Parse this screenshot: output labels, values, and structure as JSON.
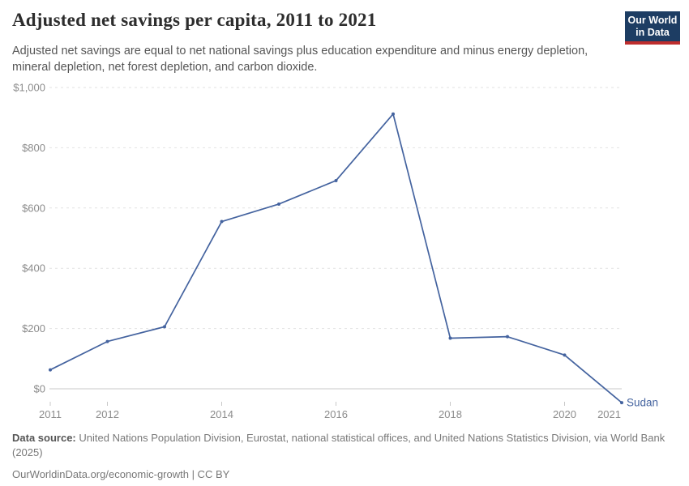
{
  "header": {
    "title": "Adjusted net savings per capita, 2011 to 2021",
    "subtitle": "Adjusted net savings are equal to net national savings plus education expenditure and minus energy depletion, mineral depletion, net forest depletion, and carbon dioxide.",
    "logo": {
      "line1": "Our World",
      "line2": "in Data",
      "bg_color": "#1d3d63",
      "accent_color": "#be2d2d"
    }
  },
  "chart_data": {
    "type": "line",
    "title": "Adjusted net savings per capita, 2011 to 2021",
    "x": [
      2011,
      2012,
      2013,
      2014,
      2015,
      2016,
      2017,
      2018,
      2019,
      2020,
      2021
    ],
    "series": [
      {
        "name": "Sudan",
        "color": "#44639f",
        "values": [
          63,
          157,
          206,
          555,
          613,
          691,
          912,
          168,
          173,
          112,
          -46
        ]
      }
    ],
    "xlabel": "",
    "ylabel": "",
    "ylim": [
      -60,
      1000
    ],
    "currency_unit": "$",
    "grid": "horizontal dashed",
    "legend_position": "end-of-line label",
    "y_ticks": [
      {
        "value": 0,
        "label": "$0"
      },
      {
        "value": 200,
        "label": "$200"
      },
      {
        "value": 400,
        "label": "$400"
      },
      {
        "value": 600,
        "label": "$600"
      },
      {
        "value": 800,
        "label": "$800"
      },
      {
        "value": 1000,
        "label": "$1,000"
      }
    ],
    "x_ticks": [
      2011,
      2012,
      2014,
      2016,
      2018,
      2020
    ],
    "x_labels": [
      2011,
      2012,
      2014,
      2016,
      2018,
      2020,
      2021
    ]
  },
  "footer": {
    "source_label": "Data source:",
    "source_text": "United Nations Population Division, Eurostat, national statistical offices, and United Nations Statistics Division, via World Bank (2025)",
    "license": "OurWorldinData.org/economic-growth | CC BY"
  },
  "colors": {
    "line": "#44639f",
    "gridline": "#e2e2e2",
    "zero_axis": "#c8c8c8",
    "tick": "#c8c8c8",
    "axis_text": "#8c8c8c",
    "title_text": "#2d2d2d",
    "subtitle_text": "#565656",
    "footer_text": "#787878"
  }
}
